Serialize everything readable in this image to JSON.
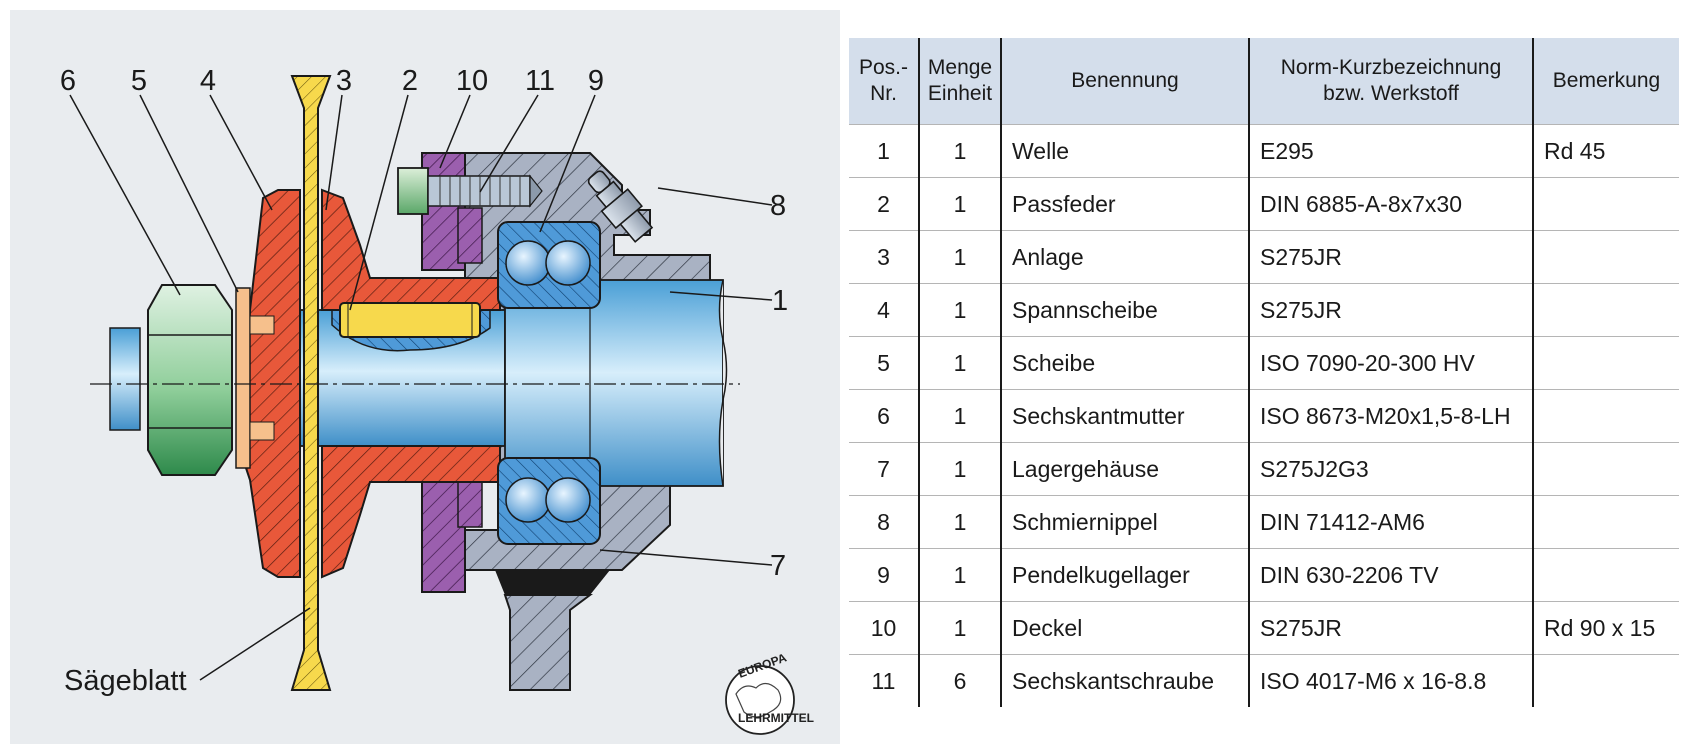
{
  "drawing": {
    "callouts": [
      "6",
      "5",
      "4",
      "3",
      "2",
      "10",
      "11",
      "9",
      "8",
      "1",
      "7"
    ],
    "saw_blade_label": "Sägeblatt",
    "logo": {
      "top_text": "EUROPA",
      "bottom_text": "LEHRMITTEL"
    },
    "colors": {
      "background": "#e9ecef",
      "flange_red": "#e8583a",
      "bearing_blue": "#4f9ad8",
      "housing_grey": "#a9b2c3",
      "cover_purple": "#9b5fae",
      "key_yellow": "#f7d94c",
      "nut_green": "#8fce9a",
      "shaft_blue": "#7cc3ec",
      "washer_orange": "#f6c08c"
    }
  },
  "table": {
    "headers": {
      "pos": [
        "Pos.-",
        "Nr."
      ],
      "menge": [
        "Menge",
        "Einheit"
      ],
      "benennung": [
        "Benennung"
      ],
      "norm": [
        "Norm-Kurzbezeichnung",
        "bzw. Werkstoff"
      ],
      "bemerkung": [
        "Bemerkung"
      ]
    },
    "header_bg": "#d4deeb",
    "rows": [
      {
        "pos": "1",
        "menge": "1",
        "benennung": "Welle",
        "norm": "E295",
        "bemerkung": "Rd 45"
      },
      {
        "pos": "2",
        "menge": "1",
        "benennung": "Passfeder",
        "norm": "DIN 6885-A-8x7x30",
        "bemerkung": ""
      },
      {
        "pos": "3",
        "menge": "1",
        "benennung": "Anlage",
        "norm": "S275JR",
        "bemerkung": ""
      },
      {
        "pos": "4",
        "menge": "1",
        "benennung": "Spannscheibe",
        "norm": "S275JR",
        "bemerkung": ""
      },
      {
        "pos": "5",
        "menge": "1",
        "benennung": "Scheibe",
        "norm": "ISO 7090-20-300 HV",
        "bemerkung": ""
      },
      {
        "pos": "6",
        "menge": "1",
        "benennung": "Sechskantmutter",
        "norm": "ISO 8673-M20x1,5-8-LH",
        "bemerkung": ""
      },
      {
        "pos": "7",
        "menge": "1",
        "benennung": "Lagergehäuse",
        "norm": "S275J2G3",
        "bemerkung": ""
      },
      {
        "pos": "8",
        "menge": "1",
        "benennung": "Schmiernippel",
        "norm": "DIN 71412-AM6",
        "bemerkung": ""
      },
      {
        "pos": "9",
        "menge": "1",
        "benennung": "Pendelkugellager",
        "norm": "DIN 630-2206 TV",
        "bemerkung": ""
      },
      {
        "pos": "10",
        "menge": "1",
        "benennung": "Deckel",
        "norm": "S275JR",
        "bemerkung": "Rd 90 x 15"
      },
      {
        "pos": "11",
        "menge": "6",
        "benennung": "Sechskantschraube",
        "norm": "ISO 4017-M6 x 16-8.8",
        "bemerkung": ""
      }
    ]
  }
}
